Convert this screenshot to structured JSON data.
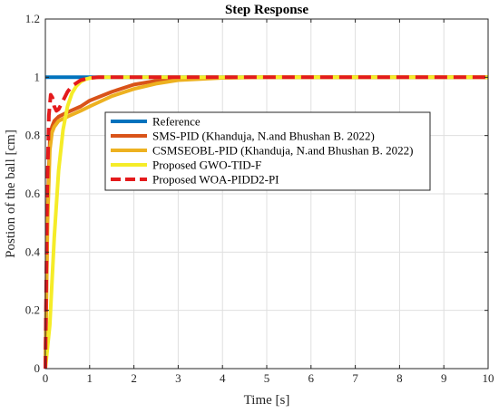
{
  "chart_data": {
    "type": "line",
    "title": "Step Response",
    "xlabel": "Time [s]",
    "ylabel": "Postion of the ball [cm]",
    "xlim": [
      0,
      10
    ],
    "ylim": [
      0,
      1.2
    ],
    "xticks": [
      0,
      1,
      2,
      3,
      4,
      5,
      6,
      7,
      8,
      9,
      10
    ],
    "yticks": [
      0,
      0.2,
      0.4,
      0.6,
      0.8,
      1,
      1.2
    ],
    "ytick_labels": [
      "0",
      "0.2",
      "0.4",
      "0.6",
      "0.8",
      "1",
      "1.2"
    ],
    "grid": true,
    "legend_position": "center-right",
    "series": [
      {
        "name": "Reference",
        "color": "#0072BD",
        "style": "solid",
        "x": [
          0,
          1,
          10
        ],
        "y": [
          1,
          1,
          1
        ]
      },
      {
        "name": "SMS-PID (Khanduja, N.and Bhushan B. 2022)",
        "color": "#D95319",
        "style": "solid",
        "x": [
          0,
          0.05,
          0.1,
          0.15,
          0.2,
          0.3,
          0.5,
          0.8,
          1,
          1.5,
          2,
          2.5,
          3,
          4,
          5,
          6,
          8,
          10
        ],
        "y": [
          0,
          0.55,
          0.78,
          0.83,
          0.85,
          0.865,
          0.88,
          0.9,
          0.92,
          0.95,
          0.975,
          0.988,
          0.995,
          0.999,
          1,
          1,
          1,
          1
        ]
      },
      {
        "name": "CSMSEOBL-PID (Khanduja, N.and Bhushan B. 2022)",
        "color": "#EDB120",
        "style": "solid",
        "x": [
          0,
          0.05,
          0.1,
          0.15,
          0.2,
          0.3,
          0.5,
          0.8,
          1,
          1.5,
          2,
          2.5,
          3,
          4,
          5,
          6,
          8,
          10
        ],
        "y": [
          0,
          0.5,
          0.75,
          0.81,
          0.83,
          0.85,
          0.865,
          0.885,
          0.9,
          0.935,
          0.96,
          0.978,
          0.99,
          0.998,
          1,
          1,
          1,
          1
        ]
      },
      {
        "name": "Proposed GWO-TID-F",
        "color": "#F5EC28",
        "style": "solid",
        "x": [
          0,
          0.1,
          0.2,
          0.3,
          0.4,
          0.5,
          0.6,
          0.7,
          0.8,
          0.9,
          1,
          1.2,
          1.5,
          2,
          3,
          10
        ],
        "y": [
          0,
          0.15,
          0.45,
          0.68,
          0.82,
          0.9,
          0.945,
          0.97,
          0.985,
          0.993,
          0.997,
          1,
          1,
          1,
          1,
          1
        ]
      },
      {
        "name": "Proposed WOA-PIDD2-PI",
        "color": "#E41A1C",
        "style": "dashed",
        "x": [
          0,
          0.04,
          0.08,
          0.12,
          0.16,
          0.2,
          0.25,
          0.3,
          0.4,
          0.5,
          0.6,
          0.8,
          1,
          1.2,
          1.5,
          2,
          10
        ],
        "y": [
          0,
          0.6,
          0.87,
          0.94,
          0.93,
          0.9,
          0.885,
          0.89,
          0.92,
          0.95,
          0.97,
          0.99,
          0.998,
          1,
          1,
          1,
          1
        ]
      }
    ]
  }
}
